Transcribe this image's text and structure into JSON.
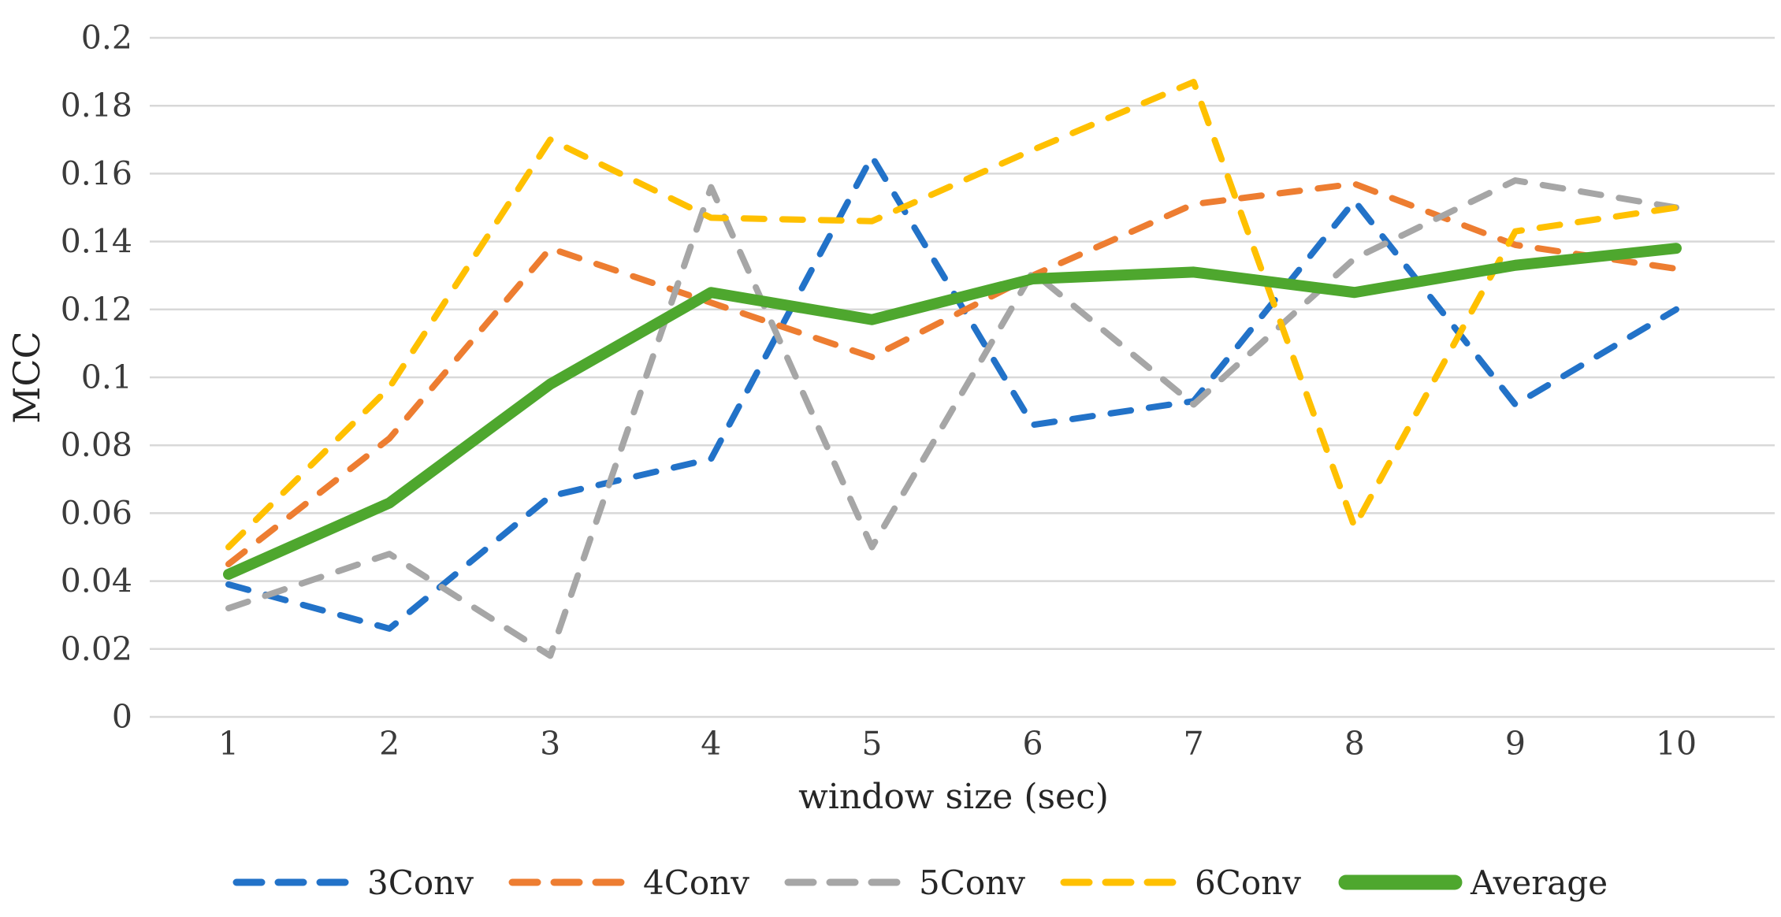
{
  "chart_data": {
    "type": "line",
    "title": "",
    "xlabel": "window size (sec)",
    "ylabel": "MCC",
    "x": [
      1,
      2,
      3,
      4,
      5,
      6,
      7,
      8,
      9,
      10
    ],
    "xlim": [
      1,
      10
    ],
    "ylim": [
      0,
      0.2
    ],
    "ytick_step": 0.02,
    "ytick_labels": [
      "0",
      "0.02",
      "0.04",
      "0.06",
      "0.08",
      "0.1",
      "0.12",
      "0.14",
      "0.16",
      "0.18",
      "0.2"
    ],
    "grid": true,
    "gridline_color": "#d8d8d8",
    "background_color": "#ffffff",
    "legend_position": "bottom",
    "series": [
      {
        "name": "3Conv",
        "color": "#2272C8",
        "style": "dashed",
        "values": [
          0.039,
          0.026,
          0.065,
          0.076,
          0.165,
          0.086,
          0.093,
          0.152,
          0.092,
          0.12
        ]
      },
      {
        "name": "4Conv",
        "color": "#ED7D31",
        "style": "dashed",
        "values": [
          0.045,
          0.082,
          0.138,
          0.122,
          0.106,
          0.13,
          0.151,
          0.157,
          0.139,
          0.132
        ]
      },
      {
        "name": "5Conv",
        "color": "#A6A6A6",
        "style": "dashed",
        "values": [
          0.032,
          0.048,
          0.018,
          0.156,
          0.05,
          0.131,
          0.092,
          0.135,
          0.158,
          0.15
        ]
      },
      {
        "name": "6Conv",
        "color": "#FFC000",
        "style": "dashed",
        "values": [
          0.05,
          0.097,
          0.17,
          0.147,
          0.146,
          0.167,
          0.187,
          0.056,
          0.143,
          0.15
        ]
      },
      {
        "name": "Average",
        "color": "#4EA72E",
        "style": "solid-thick",
        "values": [
          0.042,
          0.063,
          0.098,
          0.125,
          0.117,
          0.129,
          0.131,
          0.125,
          0.133,
          0.138
        ]
      }
    ]
  }
}
